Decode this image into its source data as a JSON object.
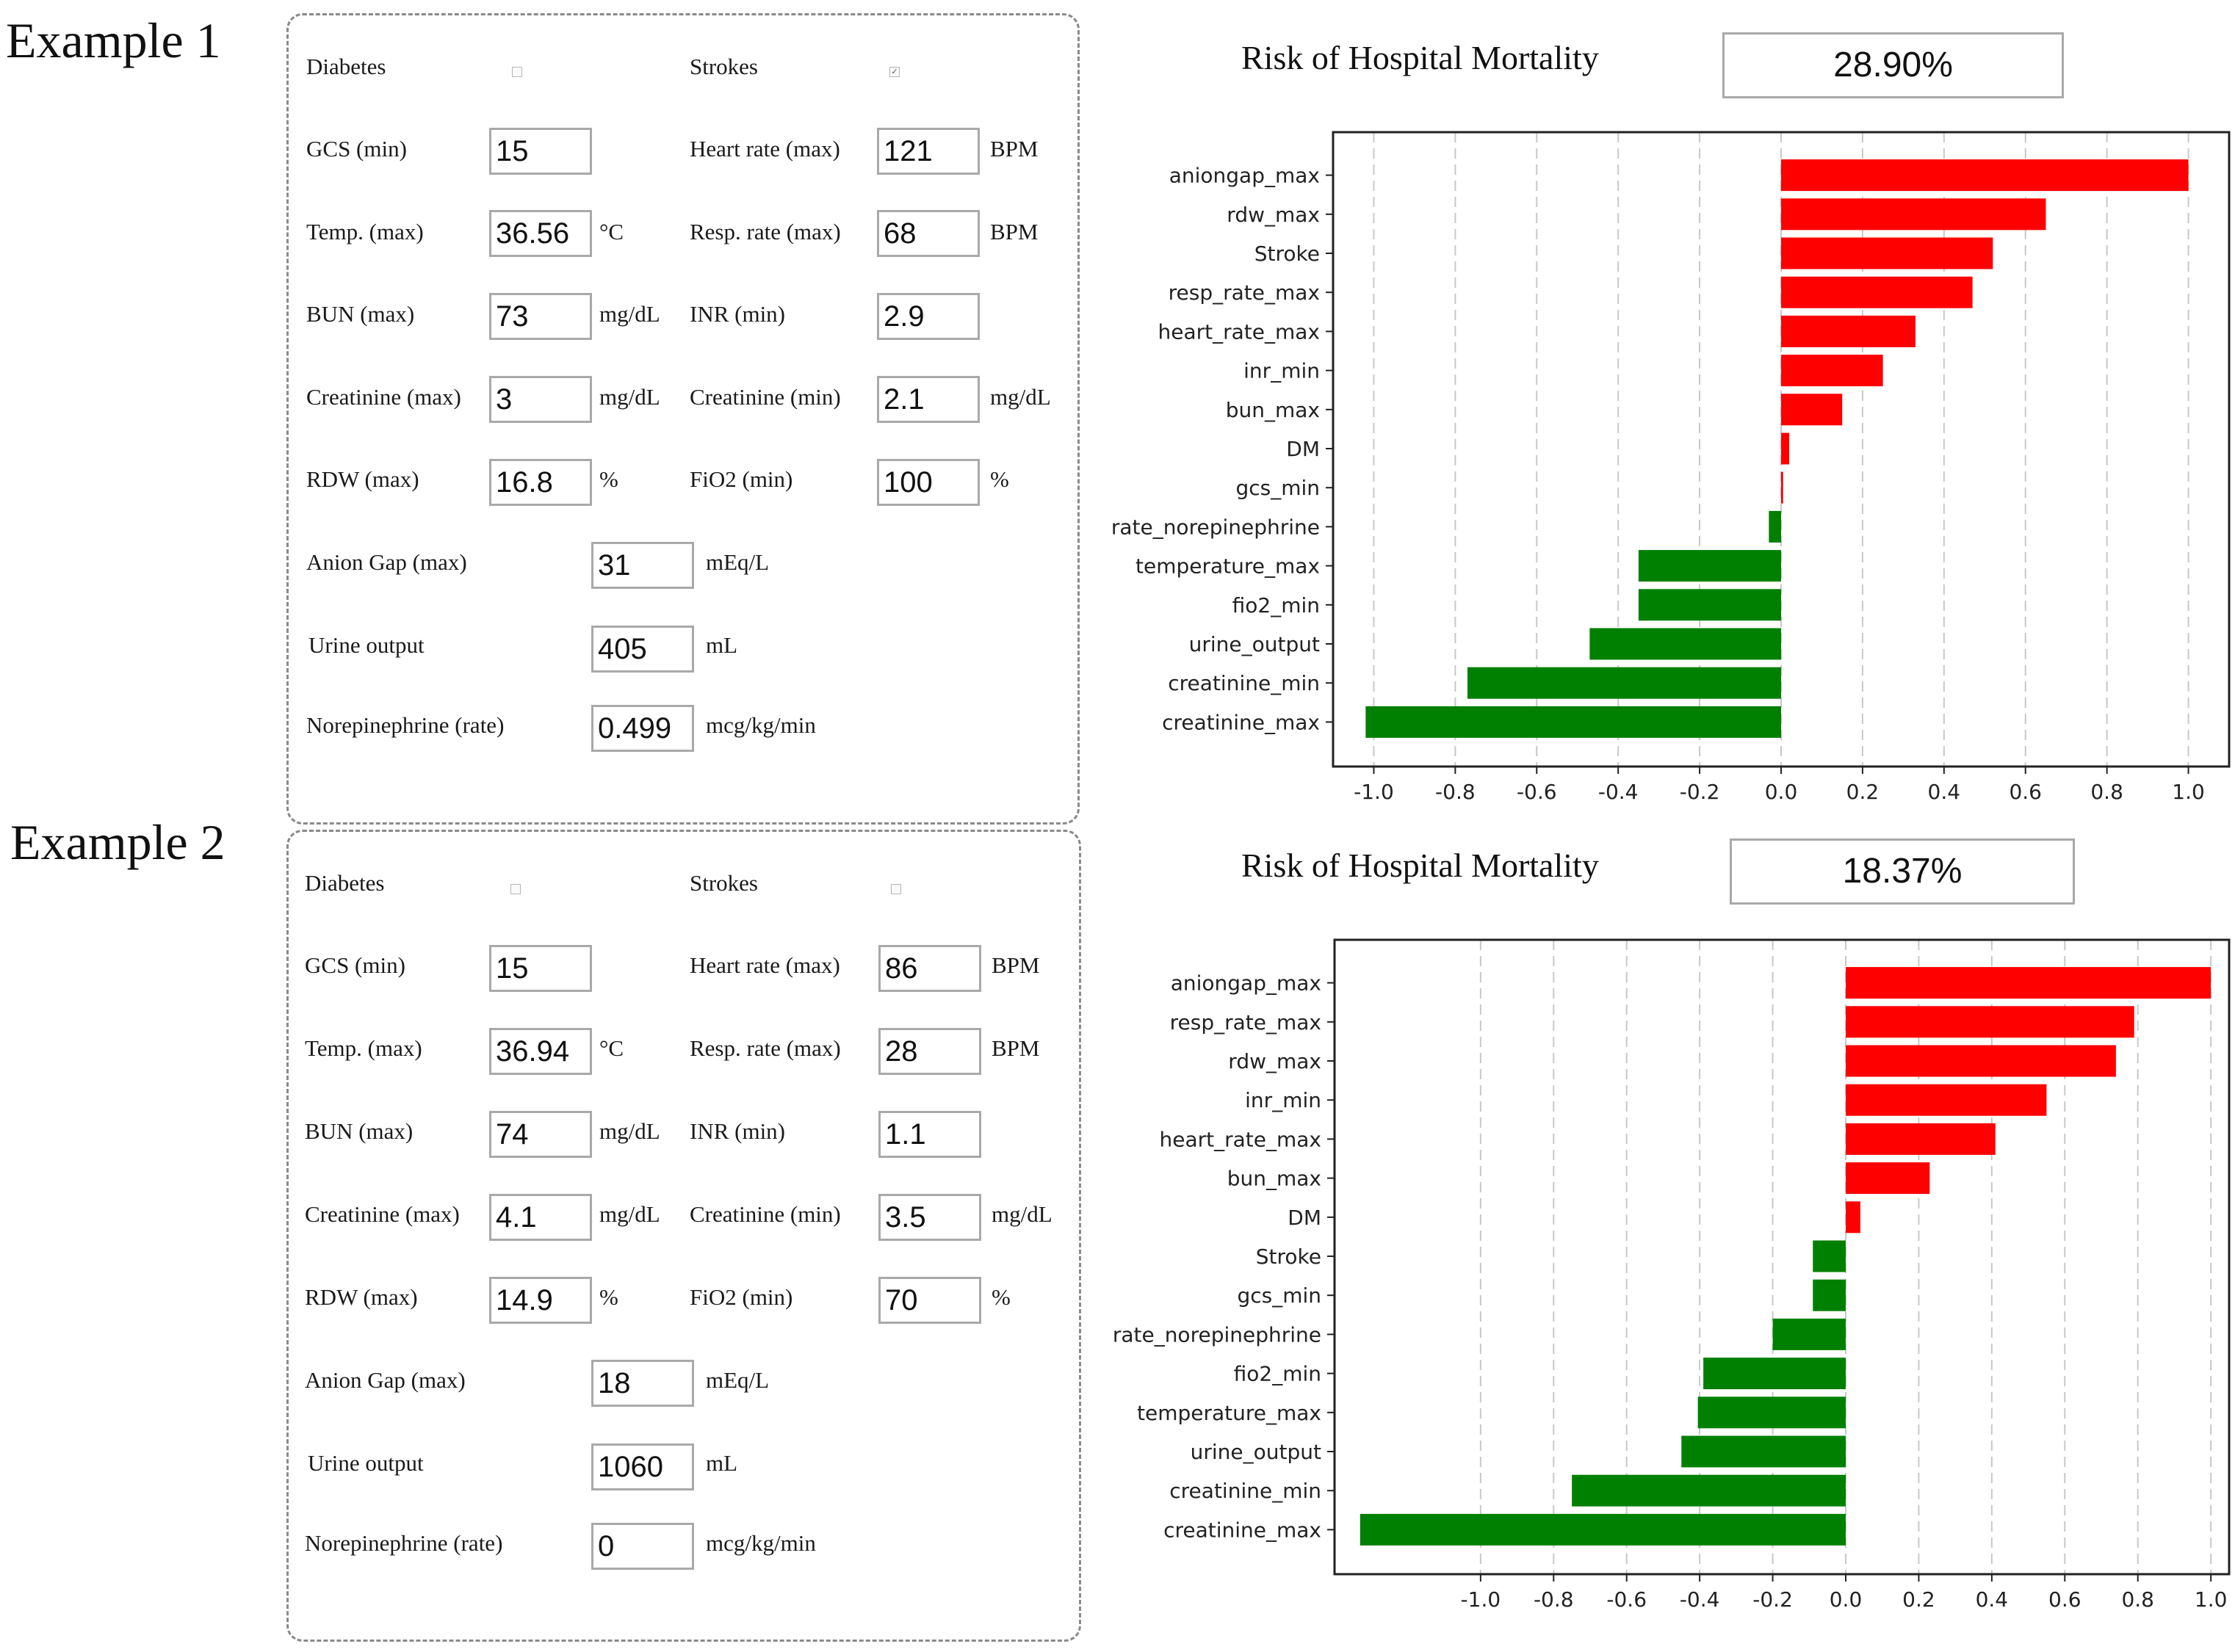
{
  "colors": {
    "positive": "#ff0000",
    "negative": "#008000",
    "grid": "#c8c8c8",
    "input_border": "#a9a9a9"
  },
  "examples": [
    {
      "label": "Example  1",
      "form": {
        "diabetes": {
          "label": "Diabetes",
          "checked": false
        },
        "strokes": {
          "label": "Strokes",
          "checked": true
        },
        "gcs_min": {
          "label": "GCS (min)",
          "value": "15"
        },
        "heart_rate_max": {
          "label": "Heart rate (max)",
          "value": "121",
          "unit": "BPM"
        },
        "temp_max": {
          "label": "Temp. (max)",
          "value": "36.56",
          "unit": "°C"
        },
        "resp_rate_max": {
          "label": "Resp. rate (max)",
          "value": "68",
          "unit": "BPM"
        },
        "bun_max": {
          "label": "BUN (max)",
          "value": "73",
          "unit": "mg/dL"
        },
        "inr_min": {
          "label": "INR (min)",
          "value": "2.9"
        },
        "creatinine_max": {
          "label": "Creatinine (max)",
          "value": "3",
          "unit": "mg/dL"
        },
        "creatinine_min": {
          "label": "Creatinine (min)",
          "value": "2.1",
          "unit": "mg/dL"
        },
        "rdw_max": {
          "label": "RDW (max)",
          "value": "16.8",
          "unit": "%"
        },
        "fio2_min": {
          "label": "FiO2 (min)",
          "value": "100",
          "unit": "%"
        },
        "anion_gap_max": {
          "label": "Anion Gap (max)",
          "value": "31",
          "unit": "mEq/L"
        },
        "urine_output": {
          "label": "Urine output",
          "value": "405",
          "unit": "mL"
        },
        "norepinephrine_rate": {
          "label": "Norepinephrine (rate)",
          "value": "0.499",
          "unit": "mcg/kg/min"
        }
      },
      "risk": {
        "title": "Risk of Hospital Mortality",
        "value": "28.90%"
      }
    },
    {
      "label": "Example  2",
      "form": {
        "diabetes": {
          "label": "Diabetes",
          "checked": false
        },
        "strokes": {
          "label": "Strokes",
          "checked": false
        },
        "gcs_min": {
          "label": "GCS (min)",
          "value": "15"
        },
        "heart_rate_max": {
          "label": "Heart rate (max)",
          "value": "86",
          "unit": "BPM"
        },
        "temp_max": {
          "label": "Temp. (max)",
          "value": "36.94",
          "unit": "°C"
        },
        "resp_rate_max": {
          "label": "Resp. rate (max)",
          "value": "28",
          "unit": "BPM"
        },
        "bun_max": {
          "label": "BUN (max)",
          "value": "74",
          "unit": "mg/dL"
        },
        "inr_min": {
          "label": "INR (min)",
          "value": "1.1"
        },
        "creatinine_max": {
          "label": "Creatinine (max)",
          "value": "4.1",
          "unit": "mg/dL"
        },
        "creatinine_min": {
          "label": "Creatinine (min)",
          "value": "3.5",
          "unit": "mg/dL"
        },
        "rdw_max": {
          "label": "RDW (max)",
          "value": "14.9",
          "unit": "%"
        },
        "fio2_min": {
          "label": "FiO2 (min)",
          "value": "70",
          "unit": "%"
        },
        "anion_gap_max": {
          "label": "Anion Gap (max)",
          "value": "18",
          "unit": "mEq/L"
        },
        "urine_output": {
          "label": "Urine output",
          "value": "1060",
          "unit": "mL"
        },
        "norepinephrine_rate": {
          "label": "Norepinephrine (rate)",
          "value": "0",
          "unit": "mcg/kg/min"
        }
      },
      "risk": {
        "title": "Risk of Hospital Mortality",
        "value": "18.37%"
      }
    }
  ],
  "chart_data": [
    {
      "type": "bar",
      "orientation": "horizontal",
      "title": "Risk of Hospital Mortality",
      "categories": [
        "aniongap_max",
        "rdw_max",
        "Stroke",
        "resp_rate_max",
        "heart_rate_max",
        "inr_min",
        "bun_max",
        "DM",
        "gcs_min",
        "rate_norepinephrine",
        "temperature_max",
        "fio2_min",
        "urine_output",
        "creatinine_min",
        "creatinine_max"
      ],
      "values": [
        1.0,
        0.65,
        0.52,
        0.47,
        0.33,
        0.25,
        0.15,
        0.02,
        0.005,
        -0.03,
        -0.35,
        -0.35,
        -0.47,
        -0.77,
        -1.02
      ],
      "xlim": [
        -1.1,
        1.1
      ],
      "xticks": [
        "-1.0",
        "-0.8",
        "-0.6",
        "-0.4",
        "-0.2",
        "0.0",
        "0.2",
        "0.4",
        "0.6",
        "0.8",
        "1.0"
      ],
      "xtick_values": [
        -1.0,
        -0.8,
        -0.6,
        -0.4,
        -0.2,
        0.0,
        0.2,
        0.4,
        0.6,
        0.8,
        1.0
      ],
      "grid": "vertical-dashed",
      "xlabel": "",
      "ylabel": ""
    },
    {
      "type": "bar",
      "orientation": "horizontal",
      "title": "Risk of Hospital Mortality",
      "categories": [
        "aniongap_max",
        "resp_rate_max",
        "rdw_max",
        "inr_min",
        "heart_rate_max",
        "bun_max",
        "DM",
        "Stroke",
        "gcs_min",
        "rate_norepinephrine",
        "fio2_min",
        "temperature_max",
        "urine_output",
        "creatinine_min",
        "creatinine_max"
      ],
      "values": [
        1.0,
        0.79,
        0.74,
        0.55,
        0.41,
        0.23,
        0.04,
        -0.09,
        -0.09,
        -0.2,
        -0.39,
        -0.405,
        -0.45,
        -0.75,
        -1.33
      ],
      "xlim": [
        -1.4,
        1.05
      ],
      "xticks": [
        "-1.0",
        "-0.8",
        "-0.6",
        "-0.4",
        "-0.2",
        "0.0",
        "0.2",
        "0.4",
        "0.6",
        "0.8",
        "1.0"
      ],
      "xtick_values": [
        -1.0,
        -0.8,
        -0.6,
        -0.4,
        -0.2,
        0.0,
        0.2,
        0.4,
        0.6,
        0.8,
        1.0
      ],
      "grid": "vertical-dashed",
      "xlabel": "",
      "ylabel": ""
    }
  ]
}
